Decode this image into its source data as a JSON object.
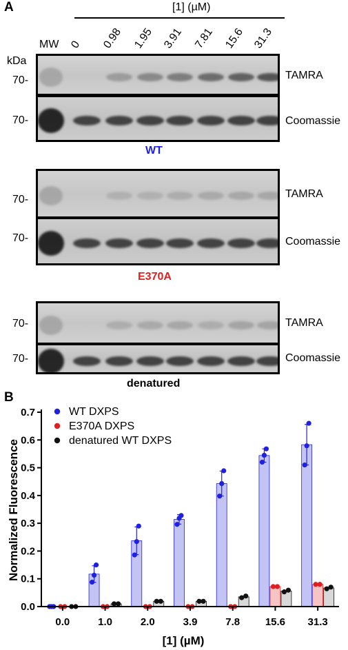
{
  "panelA": {
    "letter": "A",
    "header": "[1] (µM)",
    "mw": "MW",
    "kda": "kDa",
    "marker": "70-",
    "concentrations": [
      "0",
      "0.98",
      "1.95",
      "3.91",
      "7.81",
      "15.6",
      "31.3"
    ],
    "tamra": "TAMRA",
    "coomassie": "Coomassie",
    "conditions": [
      {
        "label": "WT",
        "color": "#1f1fe0"
      },
      {
        "label": "E370A",
        "color": "#e01f1f"
      },
      {
        "label": "denatured",
        "color": "#000000"
      }
    ],
    "tamra_intensity": [
      [
        0,
        0.2,
        0.35,
        0.45,
        0.6,
        0.7,
        0.8
      ],
      [
        0,
        0.02,
        0.02,
        0.06,
        0.08,
        0.1,
        0.1
      ],
      [
        0,
        0.05,
        0.08,
        0.1,
        0.05,
        0.12,
        0.12
      ]
    ]
  },
  "panelB": {
    "letter": "B"
  },
  "chart_data": {
    "type": "bar",
    "ylabel": "Normalized Fluorescence",
    "xlabel": "[1] (µM)",
    "categories": [
      "0.0",
      "1.0",
      "2.0",
      "3.9",
      "7.8",
      "15.6",
      "31.3"
    ],
    "ylim": [
      0,
      0.7
    ],
    "yticks": [
      "0.0",
      "0.1",
      "0.2",
      "0.3",
      "0.4",
      "0.5",
      "0.6",
      "0.7"
    ],
    "legend_position": "top-left",
    "series": [
      {
        "name": "WT DXPS",
        "color": "#2020e0",
        "fill": "#c4c4f4",
        "values": [
          0.0,
          0.117,
          0.237,
          0.314,
          0.443,
          0.544,
          0.583
        ],
        "error": [
          0.003,
          0.03,
          0.05,
          0.017,
          0.045,
          0.024,
          0.073
        ],
        "points": [
          [
            0.0,
            0.0,
            0.0
          ],
          [
            0.088,
            0.113,
            0.15
          ],
          [
            0.186,
            0.234,
            0.29
          ],
          [
            0.296,
            0.318,
            0.328
          ],
          [
            0.398,
            0.443,
            0.489
          ],
          [
            0.52,
            0.545,
            0.568
          ],
          [
            0.51,
            0.579,
            0.66
          ]
        ]
      },
      {
        "name": "E370A DXPS",
        "color": "#e02020",
        "fill": "#f6c4c4",
        "values": [
          0.0,
          0.0,
          0.0,
          0.0,
          0.0,
          0.072,
          0.08
        ],
        "error": [
          0,
          0,
          0,
          0,
          0,
          0,
          0
        ],
        "points": [
          [
            0.0,
            0.0
          ],
          [
            0.0,
            0.0
          ],
          [
            0.0,
            0.0
          ],
          [
            0.0,
            0.0
          ],
          [
            0.0,
            0.0
          ],
          [
            0.072,
            0.072
          ],
          [
            0.08,
            0.08
          ]
        ]
      },
      {
        "name": "denatured WT DXPS",
        "color": "#111111",
        "fill": "#d8d8d8",
        "values": [
          0.0,
          0.01,
          0.019,
          0.019,
          0.035,
          0.056,
          0.067
        ],
        "error": [
          0,
          0,
          0,
          0,
          0.003,
          0.003,
          0.003
        ],
        "points": [
          [
            0.0,
            0.0
          ],
          [
            0.01,
            0.01
          ],
          [
            0.019,
            0.019
          ],
          [
            0.019,
            0.019
          ],
          [
            0.032,
            0.038
          ],
          [
            0.053,
            0.059
          ],
          [
            0.064,
            0.07
          ]
        ]
      }
    ]
  }
}
